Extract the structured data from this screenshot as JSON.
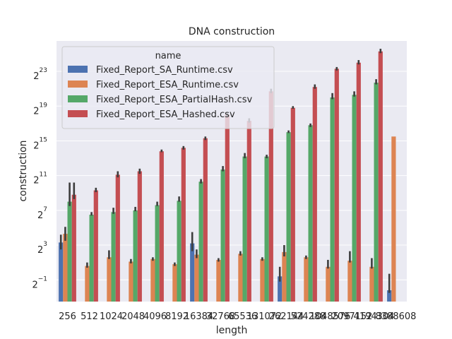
{
  "chart_data": {
    "type": "bar",
    "title": "DNA construction",
    "xlabel": "length",
    "ylabel": "construction",
    "yscale": "log2",
    "ylim_exponent": [
      -3.5,
      26.5
    ],
    "yticks": [
      {
        "base": "2",
        "exp": "−1",
        "value": -1
      },
      {
        "base": "2",
        "exp": "3",
        "value": 3
      },
      {
        "base": "2",
        "exp": "7",
        "value": 7
      },
      {
        "base": "2",
        "exp": "11",
        "value": 11
      },
      {
        "base": "2",
        "exp": "15",
        "value": 15
      },
      {
        "base": "2",
        "exp": "19",
        "value": 19
      },
      {
        "base": "2",
        "exp": "23",
        "value": 23
      }
    ],
    "categories": [
      "256",
      "512",
      "1024",
      "2048",
      "4096",
      "8192",
      "16384",
      "32768",
      "65536",
      "131072",
      "262144",
      "524288",
      "1048576",
      "2097152",
      "4194304",
      "8388608"
    ],
    "grid": true,
    "legend_title": "name",
    "legend_position": "upper-left",
    "series": [
      {
        "name": "Fixed_Report_SA_Runtime.csv",
        "color": "#4c72b0",
        "log2_values": [
          3.3,
          null,
          null,
          null,
          null,
          null,
          3.2,
          null,
          null,
          null,
          -0.6,
          null,
          null,
          null,
          null,
          -2.2
        ],
        "log2_errors": [
          [
            2.5,
            4.2
          ],
          null,
          null,
          null,
          null,
          null,
          [
            2.3,
            4.5
          ],
          null,
          null,
          null,
          [
            -1.2,
            0.5
          ],
          null,
          null,
          null,
          null,
          [
            -2.5,
            -0.3
          ]
        ]
      },
      {
        "name": "Fixed_Report_ESA_Runtime.csv",
        "color": "#dd8452",
        "log2_values": [
          4.3,
          0.6,
          1.6,
          1.1,
          1.4,
          0.8,
          1.9,
          1.3,
          2.0,
          1.4,
          2.2,
          1.6,
          0.5,
          1.2,
          0.5,
          15.5
        ],
        "log2_errors": [
          [
            3.5,
            5.1
          ],
          [
            0.4,
            1.0
          ],
          [
            1.4,
            2.4
          ],
          [
            0.9,
            1.4
          ],
          [
            1.2,
            1.6
          ],
          [
            0.6,
            1.0
          ],
          [
            1.5,
            2.5
          ],
          [
            1.1,
            1.5
          ],
          [
            1.8,
            2.3
          ],
          [
            1.2,
            1.6
          ],
          [
            1.7,
            3.0
          ],
          [
            1.4,
            1.8
          ],
          [
            0.3,
            1.3
          ],
          [
            1.0,
            2.3
          ],
          [
            0.3,
            1.5
          ],
          null
        ]
      },
      {
        "name": "Fixed_Report_ESA_PartialHash.csv",
        "color": "#55a868",
        "log2_values": [
          8.0,
          6.5,
          6.8,
          7.0,
          7.6,
          8.1,
          10.3,
          11.7,
          13.2,
          13.2,
          16.0,
          16.8,
          20.0,
          20.3,
          21.7,
          null
        ],
        "log2_errors": [
          [
            7.5,
            10.2
          ],
          [
            6.4,
            6.8
          ],
          [
            6.6,
            7.3
          ],
          [
            6.9,
            7.4
          ],
          [
            7.5,
            8.0
          ],
          [
            8.0,
            8.6
          ],
          [
            10.1,
            10.6
          ],
          [
            11.5,
            12.1
          ],
          [
            13.0,
            13.6
          ],
          [
            13.0,
            13.4
          ],
          [
            15.9,
            16.2
          ],
          [
            16.6,
            17.0
          ],
          [
            19.8,
            20.5
          ],
          [
            20.1,
            20.7
          ],
          [
            21.5,
            22.1
          ],
          null
        ]
      },
      {
        "name": "Fixed_Report_ESA_Hashed.csv",
        "color": "#c44e52",
        "log2_values": [
          8.8,
          9.3,
          11.1,
          11.5,
          13.8,
          14.2,
          15.3,
          18.0,
          17.3,
          20.7,
          18.8,
          21.2,
          23.3,
          24.0,
          25.3,
          null
        ],
        "log2_errors": [
          [
            8.3,
            10.2
          ],
          [
            9.1,
            9.6
          ],
          [
            10.8,
            11.5
          ],
          [
            11.2,
            11.8
          ],
          [
            13.7,
            14.0
          ],
          [
            14.0,
            14.4
          ],
          [
            15.1,
            15.5
          ],
          [
            17.8,
            18.2
          ],
          [
            17.1,
            17.6
          ],
          [
            20.5,
            21.0
          ],
          [
            18.7,
            19.0
          ],
          [
            21.0,
            21.5
          ],
          [
            23.1,
            23.5
          ],
          [
            23.8,
            24.3
          ],
          [
            25.1,
            25.6
          ],
          null
        ]
      }
    ]
  }
}
